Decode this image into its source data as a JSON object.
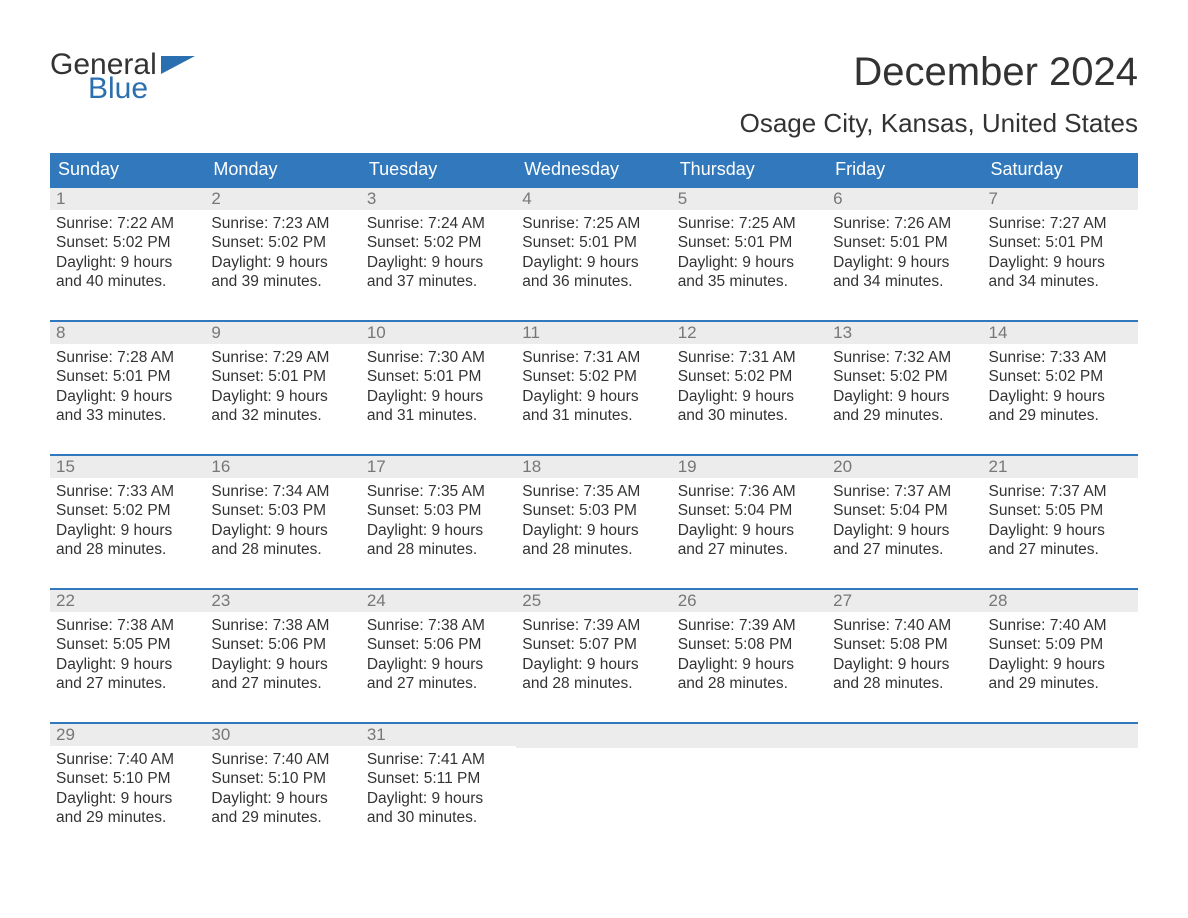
{
  "logo": {
    "general": "General",
    "blue": "Blue"
  },
  "title": "December 2024",
  "subtitle": "Osage City, Kansas, United States",
  "colors": {
    "header_bg": "#3178bc",
    "header_text": "#ffffff",
    "daynum_bg": "#ececec",
    "daynum_text": "#777777",
    "body_text": "#333333",
    "accent": "#2a6fb0"
  },
  "day_names": [
    "Sunday",
    "Monday",
    "Tuesday",
    "Wednesday",
    "Thursday",
    "Friday",
    "Saturday"
  ],
  "weeks": [
    [
      {
        "n": "1",
        "sr": "Sunrise: 7:22 AM",
        "ss": "Sunset: 5:02 PM",
        "dl": "Daylight: 9 hours and 40 minutes."
      },
      {
        "n": "2",
        "sr": "Sunrise: 7:23 AM",
        "ss": "Sunset: 5:02 PM",
        "dl": "Daylight: 9 hours and 39 minutes."
      },
      {
        "n": "3",
        "sr": "Sunrise: 7:24 AM",
        "ss": "Sunset: 5:02 PM",
        "dl": "Daylight: 9 hours and 37 minutes."
      },
      {
        "n": "4",
        "sr": "Sunrise: 7:25 AM",
        "ss": "Sunset: 5:01 PM",
        "dl": "Daylight: 9 hours and 36 minutes."
      },
      {
        "n": "5",
        "sr": "Sunrise: 7:25 AM",
        "ss": "Sunset: 5:01 PM",
        "dl": "Daylight: 9 hours and 35 minutes."
      },
      {
        "n": "6",
        "sr": "Sunrise: 7:26 AM",
        "ss": "Sunset: 5:01 PM",
        "dl": "Daylight: 9 hours and 34 minutes."
      },
      {
        "n": "7",
        "sr": "Sunrise: 7:27 AM",
        "ss": "Sunset: 5:01 PM",
        "dl": "Daylight: 9 hours and 34 minutes."
      }
    ],
    [
      {
        "n": "8",
        "sr": "Sunrise: 7:28 AM",
        "ss": "Sunset: 5:01 PM",
        "dl": "Daylight: 9 hours and 33 minutes."
      },
      {
        "n": "9",
        "sr": "Sunrise: 7:29 AM",
        "ss": "Sunset: 5:01 PM",
        "dl": "Daylight: 9 hours and 32 minutes."
      },
      {
        "n": "10",
        "sr": "Sunrise: 7:30 AM",
        "ss": "Sunset: 5:01 PM",
        "dl": "Daylight: 9 hours and 31 minutes."
      },
      {
        "n": "11",
        "sr": "Sunrise: 7:31 AM",
        "ss": "Sunset: 5:02 PM",
        "dl": "Daylight: 9 hours and 31 minutes."
      },
      {
        "n": "12",
        "sr": "Sunrise: 7:31 AM",
        "ss": "Sunset: 5:02 PM",
        "dl": "Daylight: 9 hours and 30 minutes."
      },
      {
        "n": "13",
        "sr": "Sunrise: 7:32 AM",
        "ss": "Sunset: 5:02 PM",
        "dl": "Daylight: 9 hours and 29 minutes."
      },
      {
        "n": "14",
        "sr": "Sunrise: 7:33 AM",
        "ss": "Sunset: 5:02 PM",
        "dl": "Daylight: 9 hours and 29 minutes."
      }
    ],
    [
      {
        "n": "15",
        "sr": "Sunrise: 7:33 AM",
        "ss": "Sunset: 5:02 PM",
        "dl": "Daylight: 9 hours and 28 minutes."
      },
      {
        "n": "16",
        "sr": "Sunrise: 7:34 AM",
        "ss": "Sunset: 5:03 PM",
        "dl": "Daylight: 9 hours and 28 minutes."
      },
      {
        "n": "17",
        "sr": "Sunrise: 7:35 AM",
        "ss": "Sunset: 5:03 PM",
        "dl": "Daylight: 9 hours and 28 minutes."
      },
      {
        "n": "18",
        "sr": "Sunrise: 7:35 AM",
        "ss": "Sunset: 5:03 PM",
        "dl": "Daylight: 9 hours and 28 minutes."
      },
      {
        "n": "19",
        "sr": "Sunrise: 7:36 AM",
        "ss": "Sunset: 5:04 PM",
        "dl": "Daylight: 9 hours and 27 minutes."
      },
      {
        "n": "20",
        "sr": "Sunrise: 7:37 AM",
        "ss": "Sunset: 5:04 PM",
        "dl": "Daylight: 9 hours and 27 minutes."
      },
      {
        "n": "21",
        "sr": "Sunrise: 7:37 AM",
        "ss": "Sunset: 5:05 PM",
        "dl": "Daylight: 9 hours and 27 minutes."
      }
    ],
    [
      {
        "n": "22",
        "sr": "Sunrise: 7:38 AM",
        "ss": "Sunset: 5:05 PM",
        "dl": "Daylight: 9 hours and 27 minutes."
      },
      {
        "n": "23",
        "sr": "Sunrise: 7:38 AM",
        "ss": "Sunset: 5:06 PM",
        "dl": "Daylight: 9 hours and 27 minutes."
      },
      {
        "n": "24",
        "sr": "Sunrise: 7:38 AM",
        "ss": "Sunset: 5:06 PM",
        "dl": "Daylight: 9 hours and 27 minutes."
      },
      {
        "n": "25",
        "sr": "Sunrise: 7:39 AM",
        "ss": "Sunset: 5:07 PM",
        "dl": "Daylight: 9 hours and 28 minutes."
      },
      {
        "n": "26",
        "sr": "Sunrise: 7:39 AM",
        "ss": "Sunset: 5:08 PM",
        "dl": "Daylight: 9 hours and 28 minutes."
      },
      {
        "n": "27",
        "sr": "Sunrise: 7:40 AM",
        "ss": "Sunset: 5:08 PM",
        "dl": "Daylight: 9 hours and 28 minutes."
      },
      {
        "n": "28",
        "sr": "Sunrise: 7:40 AM",
        "ss": "Sunset: 5:09 PM",
        "dl": "Daylight: 9 hours and 29 minutes."
      }
    ],
    [
      {
        "n": "29",
        "sr": "Sunrise: 7:40 AM",
        "ss": "Sunset: 5:10 PM",
        "dl": "Daylight: 9 hours and 29 minutes."
      },
      {
        "n": "30",
        "sr": "Sunrise: 7:40 AM",
        "ss": "Sunset: 5:10 PM",
        "dl": "Daylight: 9 hours and 29 minutes."
      },
      {
        "n": "31",
        "sr": "Sunrise: 7:41 AM",
        "ss": "Sunset: 5:11 PM",
        "dl": "Daylight: 9 hours and 30 minutes."
      },
      null,
      null,
      null,
      null
    ]
  ]
}
